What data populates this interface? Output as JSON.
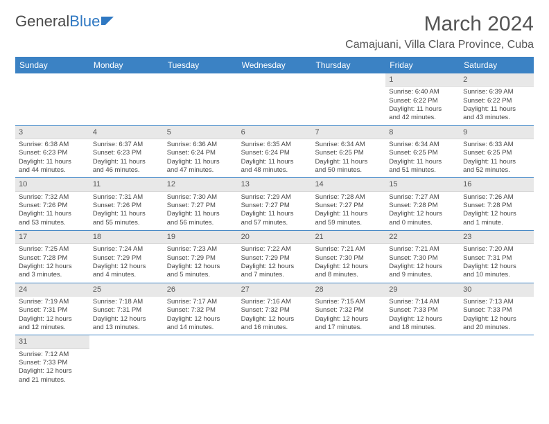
{
  "logo": {
    "part1": "General",
    "part2": "Blue"
  },
  "title": "March 2024",
  "location": "Camajuani, Villa Clara Province, Cuba",
  "header_color": "#3b82c4",
  "dayNames": [
    "Sunday",
    "Monday",
    "Tuesday",
    "Wednesday",
    "Thursday",
    "Friday",
    "Saturday"
  ],
  "weeks": [
    [
      null,
      null,
      null,
      null,
      null,
      {
        "n": "1",
        "sr": "Sunrise: 6:40 AM",
        "ss": "Sunset: 6:22 PM",
        "d1": "Daylight: 11 hours",
        "d2": "and 42 minutes."
      },
      {
        "n": "2",
        "sr": "Sunrise: 6:39 AM",
        "ss": "Sunset: 6:22 PM",
        "d1": "Daylight: 11 hours",
        "d2": "and 43 minutes."
      }
    ],
    [
      {
        "n": "3",
        "sr": "Sunrise: 6:38 AM",
        "ss": "Sunset: 6:23 PM",
        "d1": "Daylight: 11 hours",
        "d2": "and 44 minutes."
      },
      {
        "n": "4",
        "sr": "Sunrise: 6:37 AM",
        "ss": "Sunset: 6:23 PM",
        "d1": "Daylight: 11 hours",
        "d2": "and 46 minutes."
      },
      {
        "n": "5",
        "sr": "Sunrise: 6:36 AM",
        "ss": "Sunset: 6:24 PM",
        "d1": "Daylight: 11 hours",
        "d2": "and 47 minutes."
      },
      {
        "n": "6",
        "sr": "Sunrise: 6:35 AM",
        "ss": "Sunset: 6:24 PM",
        "d1": "Daylight: 11 hours",
        "d2": "and 48 minutes."
      },
      {
        "n": "7",
        "sr": "Sunrise: 6:34 AM",
        "ss": "Sunset: 6:25 PM",
        "d1": "Daylight: 11 hours",
        "d2": "and 50 minutes."
      },
      {
        "n": "8",
        "sr": "Sunrise: 6:34 AM",
        "ss": "Sunset: 6:25 PM",
        "d1": "Daylight: 11 hours",
        "d2": "and 51 minutes."
      },
      {
        "n": "9",
        "sr": "Sunrise: 6:33 AM",
        "ss": "Sunset: 6:25 PM",
        "d1": "Daylight: 11 hours",
        "d2": "and 52 minutes."
      }
    ],
    [
      {
        "n": "10",
        "sr": "Sunrise: 7:32 AM",
        "ss": "Sunset: 7:26 PM",
        "d1": "Daylight: 11 hours",
        "d2": "and 53 minutes."
      },
      {
        "n": "11",
        "sr": "Sunrise: 7:31 AM",
        "ss": "Sunset: 7:26 PM",
        "d1": "Daylight: 11 hours",
        "d2": "and 55 minutes."
      },
      {
        "n": "12",
        "sr": "Sunrise: 7:30 AM",
        "ss": "Sunset: 7:27 PM",
        "d1": "Daylight: 11 hours",
        "d2": "and 56 minutes."
      },
      {
        "n": "13",
        "sr": "Sunrise: 7:29 AM",
        "ss": "Sunset: 7:27 PM",
        "d1": "Daylight: 11 hours",
        "d2": "and 57 minutes."
      },
      {
        "n": "14",
        "sr": "Sunrise: 7:28 AM",
        "ss": "Sunset: 7:27 PM",
        "d1": "Daylight: 11 hours",
        "d2": "and 59 minutes."
      },
      {
        "n": "15",
        "sr": "Sunrise: 7:27 AM",
        "ss": "Sunset: 7:28 PM",
        "d1": "Daylight: 12 hours",
        "d2": "and 0 minutes."
      },
      {
        "n": "16",
        "sr": "Sunrise: 7:26 AM",
        "ss": "Sunset: 7:28 PM",
        "d1": "Daylight: 12 hours",
        "d2": "and 1 minute."
      }
    ],
    [
      {
        "n": "17",
        "sr": "Sunrise: 7:25 AM",
        "ss": "Sunset: 7:28 PM",
        "d1": "Daylight: 12 hours",
        "d2": "and 3 minutes."
      },
      {
        "n": "18",
        "sr": "Sunrise: 7:24 AM",
        "ss": "Sunset: 7:29 PM",
        "d1": "Daylight: 12 hours",
        "d2": "and 4 minutes."
      },
      {
        "n": "19",
        "sr": "Sunrise: 7:23 AM",
        "ss": "Sunset: 7:29 PM",
        "d1": "Daylight: 12 hours",
        "d2": "and 5 minutes."
      },
      {
        "n": "20",
        "sr": "Sunrise: 7:22 AM",
        "ss": "Sunset: 7:29 PM",
        "d1": "Daylight: 12 hours",
        "d2": "and 7 minutes."
      },
      {
        "n": "21",
        "sr": "Sunrise: 7:21 AM",
        "ss": "Sunset: 7:30 PM",
        "d1": "Daylight: 12 hours",
        "d2": "and 8 minutes."
      },
      {
        "n": "22",
        "sr": "Sunrise: 7:21 AM",
        "ss": "Sunset: 7:30 PM",
        "d1": "Daylight: 12 hours",
        "d2": "and 9 minutes."
      },
      {
        "n": "23",
        "sr": "Sunrise: 7:20 AM",
        "ss": "Sunset: 7:31 PM",
        "d1": "Daylight: 12 hours",
        "d2": "and 10 minutes."
      }
    ],
    [
      {
        "n": "24",
        "sr": "Sunrise: 7:19 AM",
        "ss": "Sunset: 7:31 PM",
        "d1": "Daylight: 12 hours",
        "d2": "and 12 minutes."
      },
      {
        "n": "25",
        "sr": "Sunrise: 7:18 AM",
        "ss": "Sunset: 7:31 PM",
        "d1": "Daylight: 12 hours",
        "d2": "and 13 minutes."
      },
      {
        "n": "26",
        "sr": "Sunrise: 7:17 AM",
        "ss": "Sunset: 7:32 PM",
        "d1": "Daylight: 12 hours",
        "d2": "and 14 minutes."
      },
      {
        "n": "27",
        "sr": "Sunrise: 7:16 AM",
        "ss": "Sunset: 7:32 PM",
        "d1": "Daylight: 12 hours",
        "d2": "and 16 minutes."
      },
      {
        "n": "28",
        "sr": "Sunrise: 7:15 AM",
        "ss": "Sunset: 7:32 PM",
        "d1": "Daylight: 12 hours",
        "d2": "and 17 minutes."
      },
      {
        "n": "29",
        "sr": "Sunrise: 7:14 AM",
        "ss": "Sunset: 7:33 PM",
        "d1": "Daylight: 12 hours",
        "d2": "and 18 minutes."
      },
      {
        "n": "30",
        "sr": "Sunrise: 7:13 AM",
        "ss": "Sunset: 7:33 PM",
        "d1": "Daylight: 12 hours",
        "d2": "and 20 minutes."
      }
    ],
    [
      {
        "n": "31",
        "sr": "Sunrise: 7:12 AM",
        "ss": "Sunset: 7:33 PM",
        "d1": "Daylight: 12 hours",
        "d2": "and 21 minutes."
      },
      null,
      null,
      null,
      null,
      null,
      null
    ]
  ]
}
